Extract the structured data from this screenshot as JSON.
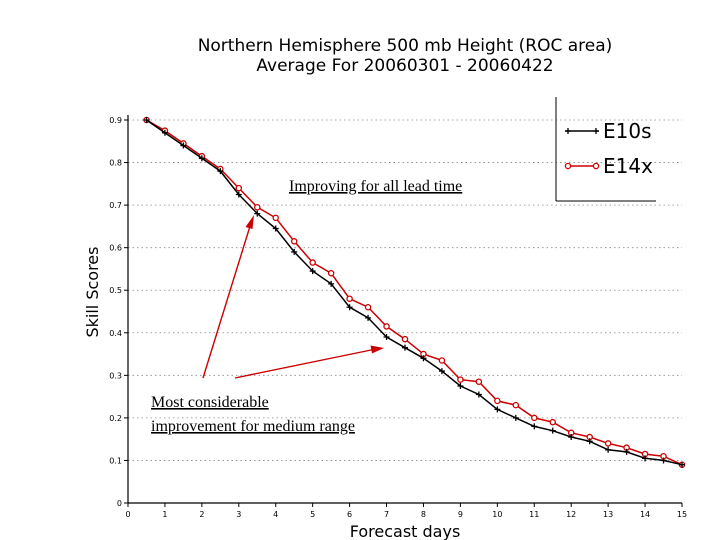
{
  "chart_data": {
    "type": "line",
    "title": "Northern Hemisphere 500 mb Height (ROC area)",
    "subtitle": "Average For 20060301 - 20060422",
    "xlabel": "Forecast days",
    "ylabel": "Skill Scores",
    "xlim": [
      0,
      15
    ],
    "ylim": [
      0,
      0.9
    ],
    "x_ticks": [
      "0",
      "1",
      "2",
      "3",
      "4",
      "5",
      "6",
      "7",
      "8",
      "9",
      "10",
      "11",
      "12",
      "13",
      "14",
      "15"
    ],
    "y_ticks": [
      "0",
      "0.1",
      "0.2",
      "0.3",
      "0.4",
      "0.5",
      "0.6",
      "0.7",
      "0.8",
      "0.9"
    ],
    "grid": true,
    "legend_position": "top-right",
    "x": [
      0.5,
      1,
      1.5,
      2,
      2.5,
      3,
      3.5,
      4,
      4.5,
      5,
      5.5,
      6,
      6.5,
      7,
      7.5,
      8,
      8.5,
      9,
      9.5,
      10,
      10.5,
      11,
      11.5,
      12,
      12.5,
      13,
      13.5,
      14,
      14.5,
      15
    ],
    "series": [
      {
        "name": "E10s",
        "color": "#000000",
        "marker": "plus",
        "values": [
          0.9,
          0.87,
          0.84,
          0.81,
          0.78,
          0.725,
          0.68,
          0.645,
          0.59,
          0.545,
          0.515,
          0.46,
          0.435,
          0.39,
          0.365,
          0.34,
          0.31,
          0.275,
          0.255,
          0.22,
          0.2,
          0.18,
          0.17,
          0.155,
          0.145,
          0.125,
          0.12,
          0.105,
          0.1,
          0.09
        ]
      },
      {
        "name": "E14x",
        "color": "#cc0000",
        "marker": "circle",
        "values": [
          0.9,
          0.875,
          0.845,
          0.815,
          0.785,
          0.74,
          0.695,
          0.67,
          0.615,
          0.565,
          0.54,
          0.48,
          0.46,
          0.415,
          0.385,
          0.35,
          0.335,
          0.29,
          0.285,
          0.24,
          0.23,
          0.2,
          0.19,
          0.165,
          0.155,
          0.14,
          0.13,
          0.115,
          0.11,
          0.09
        ]
      }
    ],
    "annotations": [
      {
        "text": "Improving for all lead time"
      },
      {
        "text": "Most considerable"
      },
      {
        "text": "improvement for medium range"
      }
    ]
  }
}
